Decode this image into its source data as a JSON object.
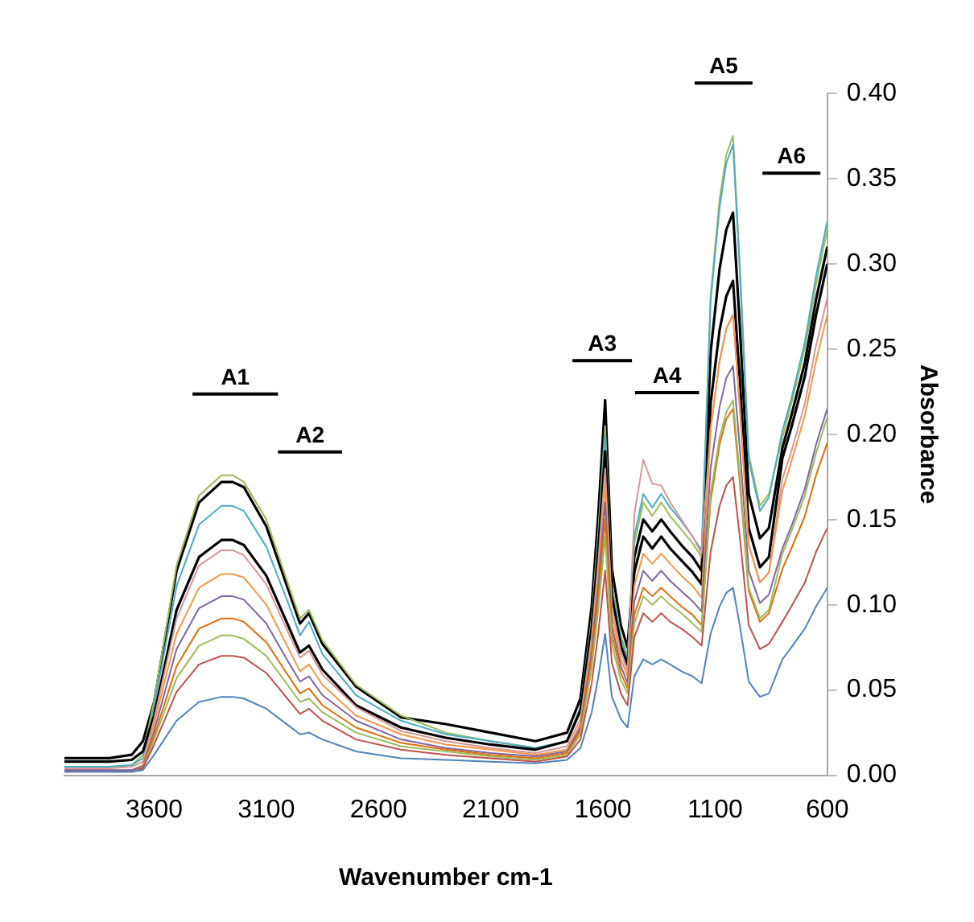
{
  "chart_data": {
    "type": "line",
    "xlabel": "Wavenumber cm-1",
    "ylabel": "Absorbance",
    "x": [
      4000,
      3800,
      3700,
      3650,
      3600,
      3500,
      3400,
      3300,
      3250,
      3200,
      3100,
      3000,
      2950,
      2910,
      2850,
      2700,
      2500,
      2300,
      2100,
      1900,
      1760,
      1700,
      1650,
      1620,
      1590,
      1560,
      1520,
      1490,
      1460,
      1420,
      1380,
      1340,
      1300,
      1250,
      1200,
      1160,
      1120,
      1080,
      1050,
      1020,
      990,
      950,
      900,
      860,
      800,
      760,
      700,
      650,
      600
    ],
    "xlim": [
      4000,
      600
    ],
    "xticks": [
      3600,
      3100,
      2600,
      2100,
      1600,
      1100,
      600
    ],
    "ylim": [
      0,
      0.4
    ],
    "yticks": [
      {
        "value": 0,
        "label": "0.00"
      },
      {
        "value": 0.05,
        "label": "0.05"
      },
      {
        "value": 0.1,
        "label": "0.10"
      },
      {
        "value": 0.15,
        "label": "0.15"
      },
      {
        "value": 0.2,
        "label": "0.20"
      },
      {
        "value": 0.25,
        "label": "0.25"
      },
      {
        "value": 0.3,
        "label": "0.30"
      },
      {
        "value": 0.35,
        "label": "0.35"
      },
      {
        "value": 0.4,
        "label": "0.40"
      }
    ],
    "grid": false,
    "legend": false,
    "marker": "none",
    "line_style": "solid",
    "annotations": [
      "A1",
      "A2",
      "A3",
      "A4",
      "A5",
      "A6"
    ],
    "series": [
      {
        "color": "#4f81bd",
        "values": [
          0.002,
          0.002,
          0.002,
          0.003,
          0.012,
          0.032,
          0.043,
          0.046,
          0.046,
          0.045,
          0.039,
          0.029,
          0.024,
          0.025,
          0.021,
          0.014,
          0.01,
          0.009,
          0.008,
          0.007,
          0.009,
          0.016,
          0.037,
          0.058,
          0.083,
          0.046,
          0.033,
          0.028,
          0.058,
          0.068,
          0.065,
          0.068,
          0.065,
          0.061,
          0.058,
          0.054,
          0.083,
          0.099,
          0.107,
          0.11,
          0.088,
          0.055,
          0.046,
          0.048,
          0.068,
          0.075,
          0.086,
          0.099,
          0.11
        ]
      },
      {
        "color": "#c0504d",
        "values": [
          0.002,
          0.002,
          0.002,
          0.004,
          0.018,
          0.049,
          0.065,
          0.07,
          0.07,
          0.069,
          0.06,
          0.044,
          0.036,
          0.039,
          0.032,
          0.021,
          0.015,
          0.012,
          0.01,
          0.008,
          0.011,
          0.021,
          0.054,
          0.084,
          0.12,
          0.066,
          0.048,
          0.041,
          0.081,
          0.095,
          0.09,
          0.095,
          0.09,
          0.086,
          0.081,
          0.076,
          0.131,
          0.158,
          0.17,
          0.175,
          0.14,
          0.088,
          0.074,
          0.077,
          0.09,
          0.099,
          0.113,
          0.131,
          0.145
        ]
      },
      {
        "color": "#9bbb59",
        "values": [
          null,
          null,
          0.002,
          0.004,
          0.021,
          0.057,
          0.076,
          0.082,
          0.082,
          0.08,
          0.07,
          0.052,
          0.043,
          0.045,
          0.037,
          0.025,
          0.017,
          0.014,
          0.011,
          0.009,
          0.012,
          0.024,
          0.063,
          0.098,
          0.14,
          0.077,
          0.056,
          0.048,
          0.089,
          0.105,
          0.1,
          0.105,
          0.1,
          0.095,
          0.089,
          0.084,
          0.165,
          0.198,
          0.213,
          0.22,
          0.176,
          0.11,
          0.092,
          0.097,
          0.13,
          0.143,
          0.164,
          0.189,
          0.21
        ]
      },
      {
        "color": "#e36c09",
        "values": [
          null,
          null,
          0.002,
          0.004,
          0.023,
          0.064,
          0.086,
          0.092,
          0.092,
          0.09,
          0.078,
          0.058,
          0.048,
          0.051,
          0.041,
          0.028,
          0.019,
          0.015,
          0.012,
          0.01,
          0.013,
          0.026,
          0.068,
          0.105,
          0.15,
          0.083,
          0.06,
          0.051,
          0.094,
          0.11,
          0.105,
          0.11,
          0.105,
          0.099,
          0.094,
          0.088,
          0.161,
          0.194,
          0.209,
          0.215,
          0.172,
          0.108,
          0.09,
          0.095,
          0.121,
          0.133,
          0.152,
          0.176,
          0.195
        ]
      },
      {
        "color": "#8064a2",
        "values": [
          0.003,
          0.003,
          0.003,
          0.005,
          0.026,
          0.074,
          0.098,
          0.105,
          0.105,
          0.103,
          0.089,
          0.066,
          0.055,
          0.058,
          0.047,
          0.032,
          0.021,
          0.016,
          0.013,
          0.011,
          0.014,
          0.028,
          0.072,
          0.112,
          0.16,
          0.088,
          0.064,
          0.054,
          0.102,
          0.12,
          0.114,
          0.12,
          0.114,
          0.108,
          0.102,
          0.096,
          0.18,
          0.216,
          0.233,
          0.24,
          0.192,
          0.12,
          0.101,
          0.106,
          0.133,
          0.146,
          0.168,
          0.194,
          0.215
        ]
      },
      {
        "color": "#f79646",
        "values": [
          0.003,
          0.003,
          0.003,
          0.006,
          0.03,
          0.083,
          0.11,
          0.118,
          0.118,
          0.116,
          0.1,
          0.074,
          0.061,
          0.065,
          0.053,
          0.035,
          0.024,
          0.018,
          0.015,
          0.012,
          0.015,
          0.03,
          0.077,
          0.119,
          0.17,
          0.094,
          0.068,
          0.058,
          0.111,
          0.13,
          0.124,
          0.13,
          0.124,
          0.117,
          0.111,
          0.104,
          0.203,
          0.243,
          0.262,
          0.27,
          0.216,
          0.135,
          0.113,
          0.119,
          0.167,
          0.184,
          0.211,
          0.243,
          0.27
        ]
      },
      {
        "color": "#d99694",
        "values": [
          0.004,
          0.004,
          0.005,
          0.008,
          0.033,
          0.092,
          0.123,
          0.132,
          0.132,
          0.129,
          0.112,
          0.083,
          0.069,
          0.073,
          0.059,
          0.04,
          0.026,
          0.02,
          0.016,
          0.013,
          0.017,
          0.033,
          0.081,
          0.126,
          0.18,
          0.099,
          0.072,
          0.061,
          0.153,
          0.185,
          0.171,
          0.17,
          0.16,
          0.15,
          0.14,
          0.13,
          0.203,
          0.243,
          0.262,
          0.27,
          0.216,
          0.135,
          0.113,
          0.119,
          0.174,
          0.19,
          0.218,
          0.252,
          0.28
        ]
      },
      {
        "color": "#000000",
        "values": [
          0.008,
          0.008,
          0.009,
          0.014,
          0.035,
          0.097,
          0.128,
          0.138,
          0.138,
          0.135,
          0.117,
          0.087,
          0.072,
          0.076,
          0.062,
          0.041,
          0.028,
          0.022,
          0.018,
          0.015,
          0.02,
          0.038,
          0.086,
          0.133,
          0.19,
          0.105,
          0.076,
          0.065,
          0.119,
          0.14,
          0.133,
          0.14,
          0.133,
          0.126,
          0.119,
          0.112,
          0.218,
          0.261,
          0.281,
          0.29,
          0.232,
          0.145,
          0.122,
          0.128,
          0.186,
          0.204,
          0.234,
          0.27,
          0.3
        ]
      },
      {
        "color": "#4bacc6",
        "values": [
          0.005,
          0.005,
          0.006,
          0.01,
          0.04,
          0.111,
          0.147,
          0.158,
          0.158,
          0.155,
          0.134,
          0.1,
          0.082,
          0.09,
          0.071,
          0.047,
          0.032,
          0.024,
          0.02,
          0.016,
          0.02,
          0.04,
          0.09,
          0.14,
          0.2,
          0.11,
          0.08,
          0.068,
          0.14,
          0.165,
          0.157,
          0.165,
          0.157,
          0.149,
          0.14,
          0.132,
          0.278,
          0.333,
          0.359,
          0.37,
          0.296,
          0.185,
          0.155,
          0.163,
          0.202,
          0.221,
          0.254,
          0.293,
          0.325
        ]
      },
      {
        "color": "#9bbb59",
        "values": [
          0.005,
          0.005,
          0.006,
          0.012,
          0.044,
          0.123,
          0.164,
          0.176,
          0.176,
          0.172,
          0.15,
          0.111,
          0.092,
          0.097,
          0.079,
          0.053,
          0.035,
          0.025,
          0.02,
          0.016,
          0.02,
          0.04,
          0.092,
          0.144,
          0.205,
          0.113,
          0.082,
          0.07,
          0.136,
          0.16,
          0.152,
          0.16,
          0.152,
          0.144,
          0.136,
          0.128,
          0.281,
          0.338,
          0.364,
          0.375,
          0.3,
          0.188,
          0.158,
          0.165,
          0.198,
          0.218,
          0.25,
          0.288,
          0.32
        ]
      },
      {
        "color": "#000000",
        "values": [
          0.01,
          0.01,
          0.012,
          0.02,
          0.043,
          0.12,
          0.16,
          0.172,
          0.172,
          0.169,
          0.146,
          0.108,
          0.089,
          0.095,
          0.077,
          0.052,
          0.034,
          0.03,
          0.025,
          0.02,
          0.025,
          0.045,
          0.099,
          0.154,
          0.22,
          0.121,
          0.088,
          0.075,
          0.128,
          0.15,
          0.143,
          0.15,
          0.143,
          0.135,
          0.128,
          0.12,
          0.248,
          0.297,
          0.32,
          0.33,
          0.264,
          0.165,
          0.139,
          0.145,
          0.192,
          0.211,
          0.242,
          0.279,
          0.31
        ]
      }
    ]
  }
}
